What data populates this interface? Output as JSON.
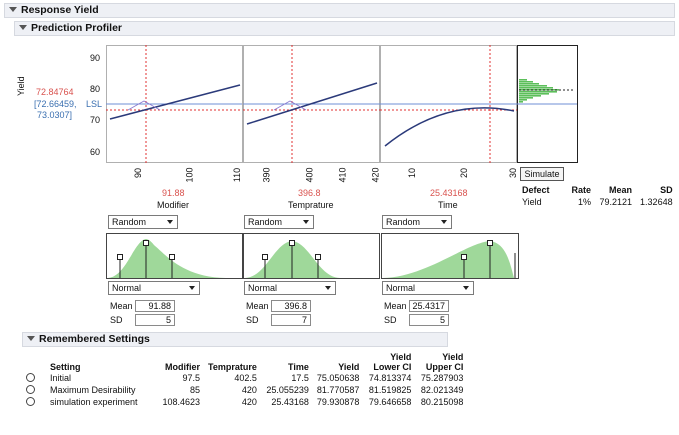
{
  "titles": {
    "main": "Response Yield",
    "profiler": "Prediction Profiler",
    "remembered": "Remembered Settings"
  },
  "response": {
    "name": "Yield",
    "value": "72.84764",
    "ci": "[72.66459,",
    "ci2": "73.0307]",
    "lsl": "LSL",
    "yticks": [
      "90",
      "80",
      "70",
      "60"
    ]
  },
  "factors": [
    {
      "name": "Modifier",
      "value": "91.88",
      "ticks": [
        "90",
        "100",
        "110"
      ],
      "dist_dropdown": "Random",
      "dist_type": "Normal",
      "mean_label": "Mean",
      "mean": "91.88",
      "sd_label": "SD",
      "sd": "5"
    },
    {
      "name": "Temprature",
      "value": "396.8",
      "ticks": [
        "390",
        "400",
        "410",
        "420"
      ],
      "dist_dropdown": "Random",
      "dist_type": "Normal",
      "mean_label": "Mean",
      "mean": "396.8",
      "sd_label": "SD",
      "sd": "7"
    },
    {
      "name": "Time",
      "value": "25.43168",
      "ticks": [
        "10",
        "20",
        "30"
      ],
      "dist_dropdown": "Random",
      "dist_type": "Normal",
      "mean_label": "Mean",
      "mean": "25.4317",
      "sd_label": "SD",
      "sd": "5"
    }
  ],
  "simulate": {
    "button": "Simulate",
    "headers": [
      "Defect",
      "Rate",
      "Mean",
      "SD"
    ],
    "row": [
      "Yield",
      "1%",
      "79.2121",
      "1.32648"
    ]
  },
  "remembered": {
    "headers": [
      "Setting",
      "Modifier",
      "Temprature",
      "Time",
      "Yield",
      "Yield Lower CI",
      "Yield Upper CI"
    ],
    "headers_top": [
      "",
      "",
      "",
      "",
      "",
      "Yield",
      "Yield"
    ],
    "headers_bottom": [
      "Setting",
      "Modifier",
      "Temprature",
      "Time",
      "Yield",
      "Lower CI",
      "Upper CI"
    ],
    "rows": [
      [
        "Initial",
        "97.5",
        "402.5",
        "17.5",
        "75.050638",
        "74.813374",
        "75.287903"
      ],
      [
        "Maximum Desirability",
        "85",
        "420",
        "25.055239",
        "81.770587",
        "81.519825",
        "82.021349"
      ],
      [
        "simulation experiment",
        "108.4623",
        "420",
        "25.43168",
        "79.930878",
        "79.646658",
        "80.215098"
      ]
    ]
  },
  "colors": {
    "curve": "#2b3a7a",
    "crosshair": "#e03030",
    "lsl": "#6f8fd6",
    "dist_fill": "#9fd89a"
  }
}
